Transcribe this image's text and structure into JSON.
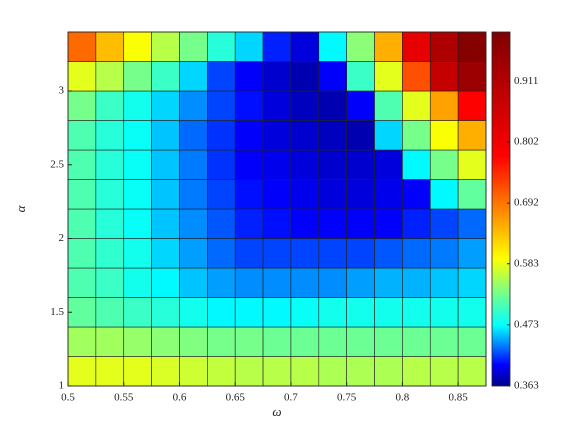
{
  "chart_data": {
    "type": "heatmap",
    "xlabel": "ω",
    "ylabel": "α",
    "xedges": [
      0.5,
      0.525,
      0.55,
      0.575,
      0.6,
      0.625,
      0.65,
      0.675,
      0.7,
      0.725,
      0.75,
      0.775,
      0.8,
      0.825,
      0.85,
      0.875
    ],
    "yedges": [
      1,
      1.2,
      1.4,
      1.6,
      1.8,
      2,
      2.2,
      2.4,
      2.6,
      2.8,
      3,
      3.2,
      3.4
    ],
    "values": [
      [
        0.58,
        0.58,
        0.58,
        0.575,
        0.57,
        0.565,
        0.56,
        0.56,
        0.56,
        0.555,
        0.555,
        0.555,
        0.56,
        0.56,
        0.56
      ],
      [
        0.55,
        0.55,
        0.545,
        0.54,
        0.535,
        0.53,
        0.53,
        0.525,
        0.525,
        0.525,
        0.525,
        0.525,
        0.525,
        0.525,
        0.525
      ],
      [
        0.52,
        0.51,
        0.5,
        0.49,
        0.48,
        0.47,
        0.47,
        0.47,
        0.475,
        0.48,
        0.48,
        0.48,
        0.48,
        0.48,
        0.48
      ],
      [
        0.51,
        0.5,
        0.48,
        0.47,
        0.455,
        0.445,
        0.44,
        0.44,
        0.44,
        0.44,
        0.445,
        0.45,
        0.45,
        0.455,
        0.46
      ],
      [
        0.51,
        0.495,
        0.48,
        0.46,
        0.445,
        0.43,
        0.42,
        0.42,
        0.42,
        0.42,
        0.42,
        0.425,
        0.43,
        0.435,
        0.445
      ],
      [
        0.51,
        0.49,
        0.475,
        0.455,
        0.44,
        0.425,
        0.41,
        0.405,
        0.4,
        0.4,
        0.4,
        0.4,
        0.41,
        0.42,
        0.43
      ],
      [
        0.51,
        0.49,
        0.475,
        0.455,
        0.435,
        0.42,
        0.405,
        0.4,
        0.395,
        0.39,
        0.39,
        0.395,
        0.4,
        0.47,
        0.52
      ],
      [
        0.51,
        0.49,
        0.475,
        0.455,
        0.435,
        0.415,
        0.4,
        0.395,
        0.39,
        0.385,
        0.385,
        0.39,
        0.47,
        0.53,
        0.58
      ],
      [
        0.51,
        0.49,
        0.475,
        0.455,
        0.43,
        0.415,
        0.4,
        0.39,
        0.385,
        0.38,
        0.375,
        0.46,
        0.53,
        0.59,
        0.65
      ],
      [
        0.53,
        0.5,
        0.48,
        0.46,
        0.44,
        0.42,
        0.405,
        0.39,
        0.38,
        0.375,
        0.4,
        0.51,
        0.58,
        0.66,
        0.78
      ],
      [
        0.58,
        0.56,
        0.53,
        0.5,
        0.46,
        0.42,
        0.4,
        0.385,
        0.375,
        0.4,
        0.5,
        0.58,
        0.72,
        0.88,
        0.95
      ],
      [
        0.7,
        0.64,
        0.59,
        0.56,
        0.53,
        0.49,
        0.46,
        0.41,
        0.39,
        0.47,
        0.54,
        0.65,
        0.82,
        0.92,
        0.99
      ]
    ],
    "colormap": "jet",
    "xlim": [
      0.5,
      0.875
    ],
    "xticks": [
      0.5,
      0.55,
      0.6,
      0.65,
      0.7,
      0.75,
      0.8,
      0.85
    ],
    "ylim": [
      1,
      3.4
    ],
    "yticks": [
      1,
      1.5,
      2,
      2.5,
      3
    ],
    "clim": [
      0.363,
      1.0
    ],
    "cticks": [
      0.363,
      0.473,
      0.583,
      0.692,
      0.802,
      0.911
    ]
  }
}
